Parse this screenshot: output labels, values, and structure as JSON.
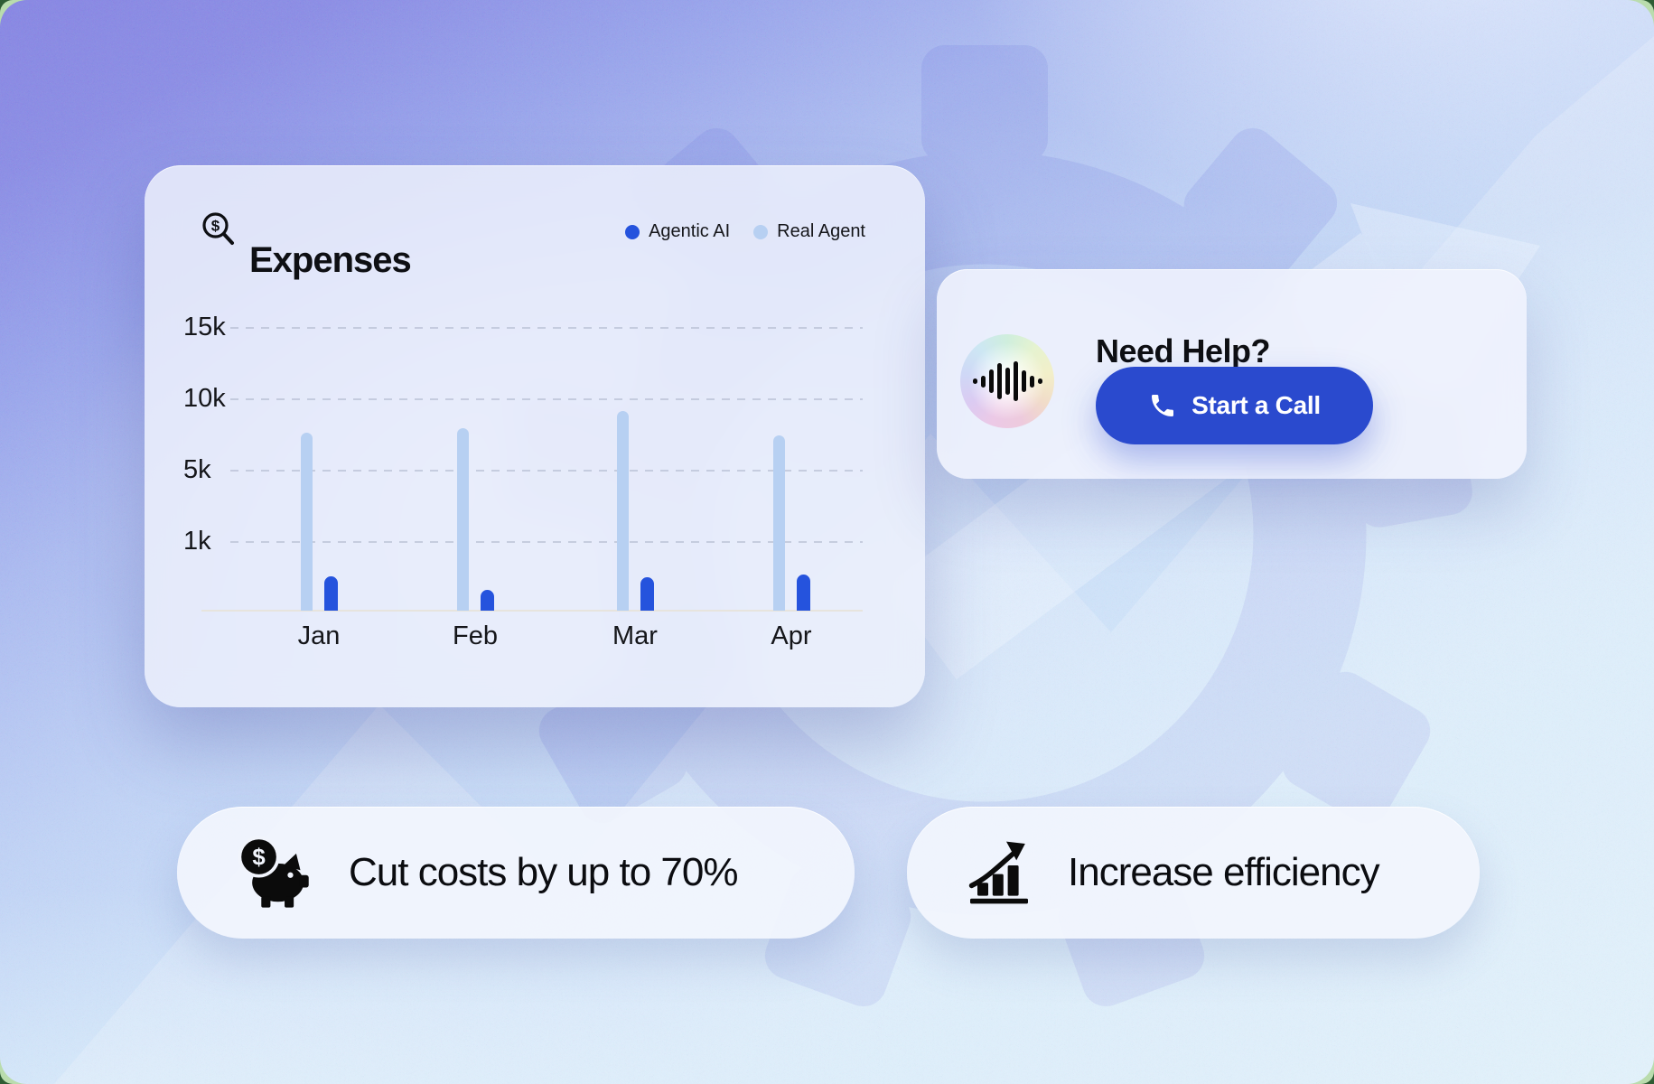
{
  "page": {
    "outer_background": "#2e5c33",
    "inner_background": "#b9dcad"
  },
  "colors": {
    "accent_blue": "#2553dd",
    "light_blue": "#b7d0f2",
    "button_blue": "#2a4ace",
    "text": "#0e0f13"
  },
  "expenses_card": {
    "title": "Expenses",
    "title_icon": "magnifier-dollar-icon"
  },
  "chart_data": {
    "type": "bar",
    "title": "Expenses",
    "categories": [
      "Jan",
      "Feb",
      "Mar",
      "Apr"
    ],
    "series": [
      {
        "name": "Agentic AI",
        "color": "#2553dd",
        "values": [
          500,
          300,
          480,
          520
        ]
      },
      {
        "name": "Real Agent",
        "color": "#b7d0f2",
        "values": [
          7600,
          7900,
          9100,
          7400
        ]
      }
    ],
    "y_ticks": [
      {
        "label": "15k",
        "value": 15000
      },
      {
        "label": "10k",
        "value": 10000
      },
      {
        "label": "5k",
        "value": 5000
      },
      {
        "label": "1k",
        "value": 1000
      }
    ],
    "ylim": [
      0,
      17000
    ],
    "xlabel": "",
    "ylabel": "",
    "grid": "horizontal-dashed",
    "legend_position": "top-right",
    "axis_note": "decorative axis: ticks 1k/5k/10k/15k evenly spaced"
  },
  "help_card": {
    "title": "Need Help?",
    "orb_icon": "voice-waveform-orb",
    "button_label": "Start a Call",
    "button_icon": "phone-icon"
  },
  "benefits": [
    {
      "icon": "piggy-bank-dollar-icon",
      "label": "Cut costs by up to 70%"
    },
    {
      "icon": "growth-chart-arrow-icon",
      "label": "Increase efficiency"
    }
  ]
}
